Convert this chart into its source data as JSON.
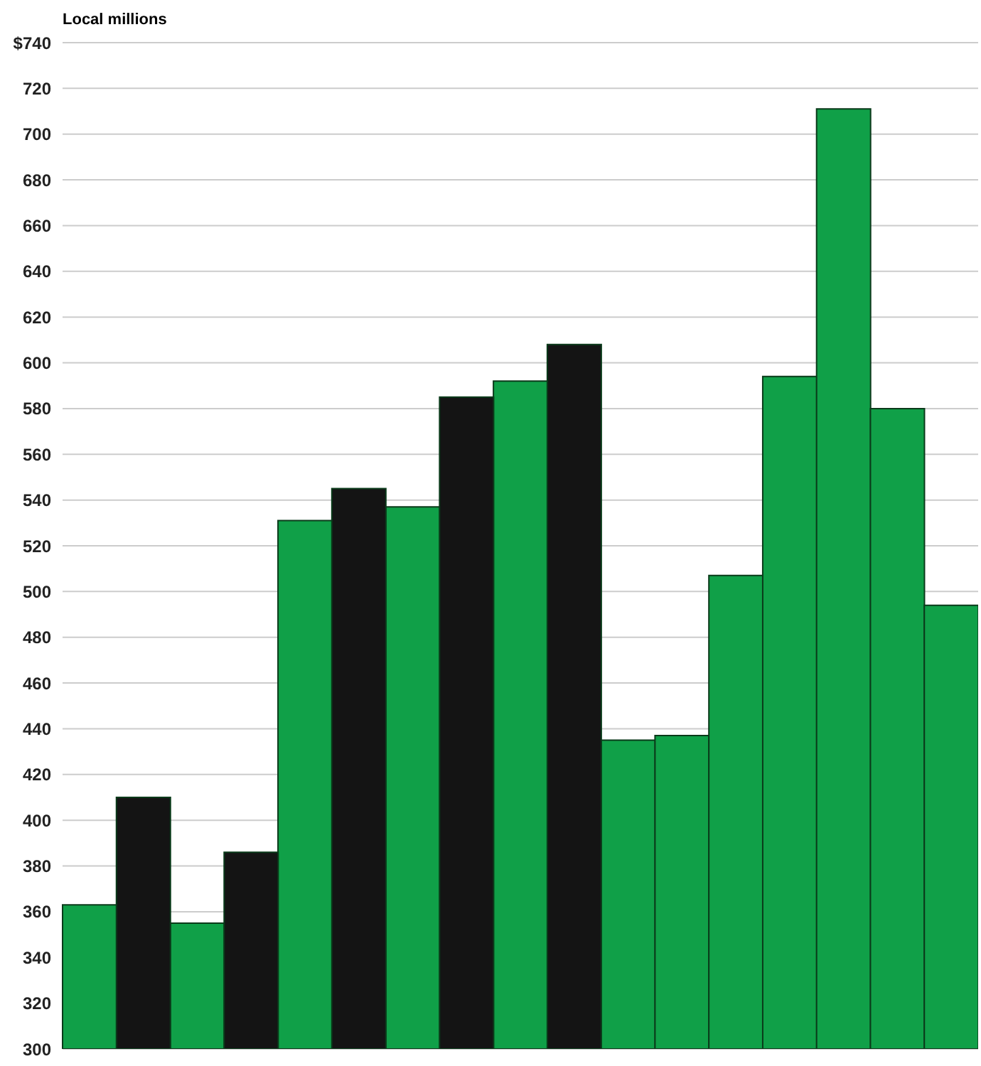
{
  "chart_data": {
    "type": "bar",
    "title": "Local millions",
    "categories": [
      null,
      null,
      null,
      null,
      null,
      null,
      null,
      null,
      null,
      null,
      null,
      null,
      null,
      null,
      null,
      null,
      null
    ],
    "series": [
      {
        "color": "#10a048",
        "values": [
          363,
          null,
          355,
          null,
          531,
          null,
          537,
          null,
          592,
          null,
          435,
          437,
          507,
          594,
          711,
          580,
          494
        ]
      },
      {
        "color": "#141414",
        "values": [
          null,
          410,
          null,
          386,
          null,
          545,
          null,
          585,
          null,
          608,
          null,
          null,
          null,
          null,
          null,
          null,
          null
        ]
      }
    ],
    "ylim": [
      300,
      740
    ],
    "yticks": [
      300,
      320,
      340,
      360,
      380,
      400,
      420,
      440,
      460,
      480,
      500,
      520,
      540,
      560,
      580,
      600,
      620,
      640,
      660,
      680,
      700,
      720,
      {
        "value": 740,
        "label": "$740"
      }
    ],
    "grid": "y"
  }
}
